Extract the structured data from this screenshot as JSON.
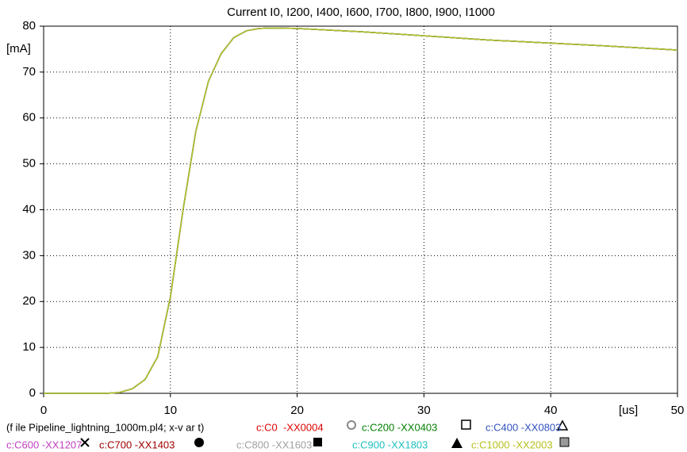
{
  "chart_data": {
    "type": "line",
    "title": "Current I0, I200, I400, I600, I700, I800, I900, I1000",
    "y_unit": "[mA]",
    "x_unit": "[us]",
    "file_info": "(f ile Pipeline_lightning_1000m.pl4; x-v ar t)",
    "xlim": [
      0,
      50
    ],
    "xticks": [
      0,
      10,
      20,
      30,
      40,
      50
    ],
    "ylim": [
      0,
      80
    ],
    "yticks": [
      0,
      10,
      20,
      30,
      40,
      50,
      60,
      70,
      80
    ],
    "grid": true,
    "x": [
      0,
      5,
      6,
      7,
      8,
      9,
      10,
      11,
      12,
      13,
      14,
      15,
      16,
      17,
      18,
      20,
      25,
      30,
      35,
      40,
      45,
      50
    ],
    "series": [
      {
        "name": "c:C0  -XX0004",
        "color": "#e00000",
        "values": [
          0,
          0,
          0.2,
          1,
          3,
          8,
          21,
          40,
          57,
          68,
          74,
          77.5,
          79,
          79.5,
          79.6,
          79.5,
          78.8,
          77.9,
          77,
          76.3,
          75.6,
          74.8
        ]
      },
      {
        "name": "c:C200 -XX0403",
        "color": "#008000",
        "values": [
          0,
          0,
          0.2,
          1,
          3,
          8,
          21,
          40,
          57,
          68,
          74,
          77.5,
          79,
          79.5,
          79.6,
          79.5,
          78.8,
          77.9,
          77,
          76.3,
          75.6,
          74.8
        ]
      },
      {
        "name": "c:C400 -XX0803",
        "color": "#3050c0",
        "values": [
          0,
          0,
          0.2,
          1,
          3,
          8,
          21,
          40,
          57,
          68,
          74,
          77.5,
          79,
          79.5,
          79.6,
          79.5,
          78.8,
          77.9,
          77,
          76.3,
          75.6,
          74.8
        ]
      },
      {
        "name": "c:C600 -XX1207",
        "color": "#c040c0",
        "values": [
          0,
          0,
          0.2,
          1,
          3,
          8,
          21,
          40,
          57,
          68,
          74,
          77.5,
          79,
          79.5,
          79.6,
          79.5,
          78.8,
          77.9,
          77,
          76.3,
          75.6,
          74.8
        ]
      },
      {
        "name": "c:C700 -XX1403",
        "color": "#a00000",
        "values": [
          0,
          0,
          0.2,
          1,
          3,
          8,
          21,
          40,
          57,
          68,
          74,
          77.5,
          79,
          79.5,
          79.6,
          79.5,
          78.8,
          77.9,
          77,
          76.3,
          75.6,
          74.8
        ]
      },
      {
        "name": "c:C800 -XX1603",
        "color": "#a0a0a0",
        "values": [
          0,
          0,
          0.2,
          1,
          3,
          8,
          21,
          40,
          57,
          68,
          74,
          77.5,
          79,
          79.5,
          79.6,
          79.5,
          78.8,
          77.9,
          77,
          76.3,
          75.6,
          74.8
        ]
      },
      {
        "name": "c:C900 -XX1803",
        "color": "#20c0c0",
        "values": [
          0,
          0,
          0.2,
          1,
          3,
          8,
          21,
          40,
          57,
          68,
          74,
          77.5,
          79,
          79.5,
          79.6,
          79.5,
          78.8,
          77.9,
          77,
          76.3,
          75.6,
          74.8
        ]
      },
      {
        "name": "c:C1000 -XX2003",
        "color": "#b8c020",
        "values": [
          0,
          0,
          0.2,
          1,
          3,
          8,
          21,
          40,
          57,
          68,
          74,
          77.5,
          79,
          79.5,
          79.6,
          79.5,
          78.8,
          77.9,
          77,
          76.3,
          75.6,
          74.8
        ]
      }
    ]
  }
}
